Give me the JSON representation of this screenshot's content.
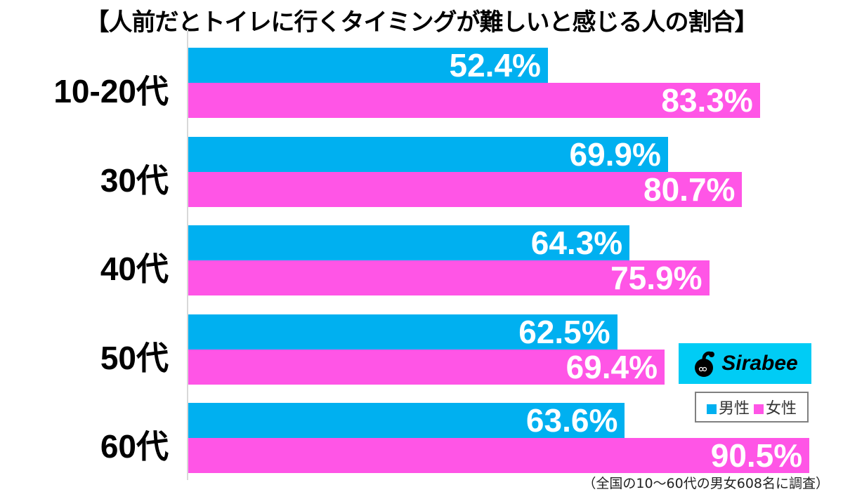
{
  "chart_data": {
    "type": "bar",
    "orientation": "horizontal",
    "title": "【人前だとトイレに行くタイミングが難しいと感じる人の割合】",
    "categories": [
      "10-20代",
      "30代",
      "40代",
      "50代",
      "60代"
    ],
    "series": [
      {
        "name": "男性",
        "color": "#00b0f0",
        "values": [
          52.4,
          69.9,
          64.3,
          62.5,
          63.6
        ]
      },
      {
        "name": "女性",
        "color": "#ff55e6",
        "values": [
          83.3,
          80.7,
          75.9,
          69.4,
          90.5
        ]
      }
    ],
    "value_labels": {
      "male": [
        "52.4%",
        "69.9%",
        "64.3%",
        "62.5%",
        "63.6%"
      ],
      "female": [
        "83.3%",
        "80.7%",
        "75.9%",
        "69.4%",
        "90.5%"
      ]
    },
    "xlabel": "",
    "ylabel": "",
    "xlim": [
      0,
      100
    ],
    "grid": false,
    "legend_position": "lower right",
    "annotation": "（全国の10〜60代の男女608名に調査）"
  },
  "title": "【人前だとトイレに行くタイミングが難しいと感じる人の割合】",
  "logo": {
    "brand": "Sirabee",
    "bg_color": "#00ccf5"
  },
  "legend": {
    "male_label": "男性",
    "female_label": "女性",
    "male_color": "#00b0f0",
    "female_color": "#ff55e6"
  },
  "footnote": "（全国の10〜60代の男女608名に調査）"
}
